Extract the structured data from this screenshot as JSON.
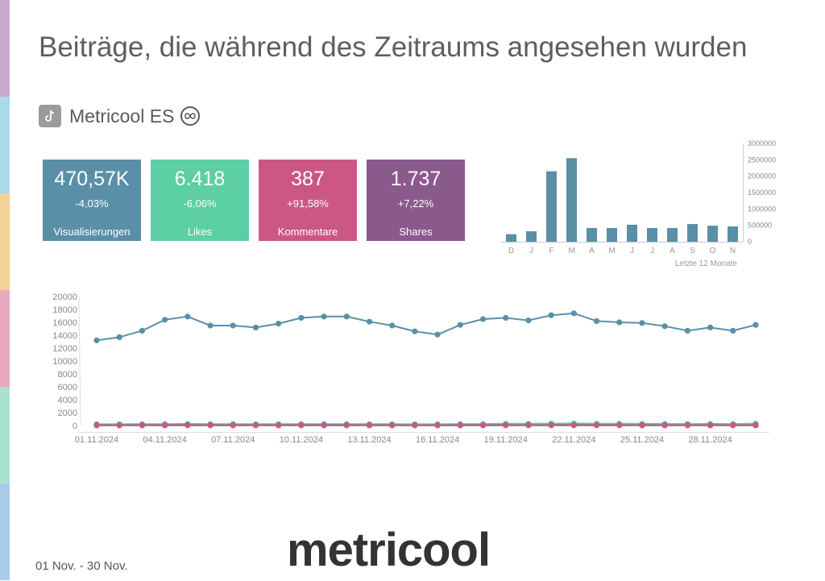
{
  "header": {
    "title": "Beiträge, die während des Zeitraums angesehen wurden",
    "account_name": "Metricool ES"
  },
  "kpis": [
    {
      "value": "470,57K",
      "change": "-4,03%",
      "label": "Visualisierungen",
      "color": "#5a8fa8"
    },
    {
      "value": "6.418",
      "change": "-6,06%",
      "label": "Likes",
      "color": "#5ccfa4"
    },
    {
      "value": "387",
      "change": "+91,58%",
      "label": "Kommentare",
      "color": "#cc5784"
    },
    {
      "value": "1.737",
      "change": "+7,22%",
      "label": "Shares",
      "color": "#8a5a8c"
    }
  ],
  "footer": {
    "date_range": "01 Nov. - 30 Nov.",
    "logo_text": "metricool"
  },
  "colors": {
    "side_strip": [
      "#c8aacb",
      "#a9dbe8",
      "#f5d296",
      "#e8a9c0",
      "#a9e3cf",
      "#a9cbe8"
    ]
  },
  "chart_data": [
    {
      "type": "bar",
      "title": "",
      "categories": [
        "D",
        "J",
        "F",
        "M",
        "A",
        "M",
        "J",
        "J",
        "A",
        "S",
        "O",
        "N"
      ],
      "values": [
        230000,
        320000,
        2150000,
        2550000,
        420000,
        420000,
        520000,
        420000,
        420000,
        540000,
        490000,
        470000
      ],
      "ylim": [
        0,
        3000000
      ],
      "yticks": [
        "0",
        "500000",
        "1000000",
        "1500000",
        "2000000",
        "2500000",
        "3000000"
      ],
      "xlabel": "Letzte 12 Monate",
      "ylabel": "",
      "color": "#5a8fa8",
      "legend": "none"
    },
    {
      "type": "line",
      "title": "",
      "x": [
        "01.11.2024",
        "02.11.2024",
        "03.11.2024",
        "04.11.2024",
        "05.11.2024",
        "06.11.2024",
        "07.11.2024",
        "08.11.2024",
        "09.11.2024",
        "10.11.2024",
        "11.11.2024",
        "12.11.2024",
        "13.11.2024",
        "14.11.2024",
        "15.11.2024",
        "16.11.2024",
        "17.11.2024",
        "18.11.2024",
        "19.11.2024",
        "20.11.2024",
        "21.11.2024",
        "22.11.2024",
        "23.11.2024",
        "24.11.2024",
        "25.11.2024",
        "26.11.2024",
        "27.11.2024",
        "28.11.2024",
        "29.11.2024",
        "30.11.2024"
      ],
      "xticks": [
        "01.11.2024",
        "04.11.2024",
        "07.11.2024",
        "10.11.2024",
        "13.11.2024",
        "16.11.2024",
        "19.11.2024",
        "22.11.2024",
        "25.11.2024",
        "28.11.2024"
      ],
      "ylim": [
        0,
        20000
      ],
      "yticks": [
        "0",
        "2000",
        "4000",
        "6000",
        "8000",
        "10000",
        "12000",
        "14000",
        "16000",
        "18000",
        "20000"
      ],
      "xlabel": "",
      "ylabel": "",
      "legend": "none",
      "series": [
        {
          "name": "Visualisierungen",
          "color": "#5a8fa8",
          "values": [
            13200,
            13700,
            14700,
            16400,
            16900,
            15500,
            15500,
            15200,
            15800,
            16700,
            16900,
            16900,
            16100,
            15500,
            14600,
            14100,
            15600,
            16500,
            16700,
            16300,
            17100,
            17400,
            16200,
            16000,
            15900,
            15400,
            14700,
            15200,
            14700,
            15600
          ]
        },
        {
          "name": "Likes",
          "color": "#5ccfa4",
          "values": [
            200,
            220,
            210,
            230,
            260,
            220,
            220,
            210,
            220,
            230,
            230,
            230,
            220,
            210,
            200,
            200,
            220,
            240,
            280,
            270,
            300,
            330,
            290,
            280,
            260,
            250,
            240,
            250,
            240,
            300
          ]
        },
        {
          "name": "Shares",
          "color": "#8a5a8c",
          "values": [
            60,
            55,
            58,
            60,
            65,
            60,
            58,
            57,
            58,
            60,
            60,
            60,
            58,
            55,
            55,
            54,
            58,
            60,
            65,
            62,
            68,
            70,
            64,
            62,
            60,
            58,
            56,
            58,
            56,
            60
          ]
        },
        {
          "name": "Kommentare",
          "color": "#cc5784",
          "values": [
            12,
            10,
            11,
            12,
            14,
            12,
            11,
            11,
            12,
            13,
            12,
            12,
            11,
            10,
            10,
            10,
            12,
            13,
            15,
            14,
            16,
            18,
            15,
            14,
            13,
            12,
            12,
            12,
            11,
            13
          ]
        }
      ]
    }
  ]
}
